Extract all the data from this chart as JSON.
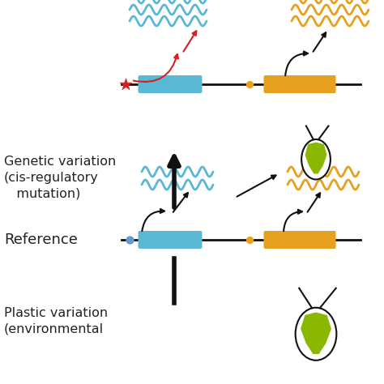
{
  "bg_color": "#ffffff",
  "blue_color": "#5bb8d4",
  "orange_color": "#e8a020",
  "red_color": "#d42020",
  "green_color": "#8ab800",
  "black_color": "#111111",
  "text_color": "#222222",
  "dot_blue": "#6699cc",
  "label_genetic": "Genetic variation\n(cis-regulatory\n   mutation)",
  "label_reference": "Reference",
  "label_plastic": "Plastic variation\n(environmental",
  "figsize": [
    4.74,
    4.74
  ],
  "dpi": 100
}
